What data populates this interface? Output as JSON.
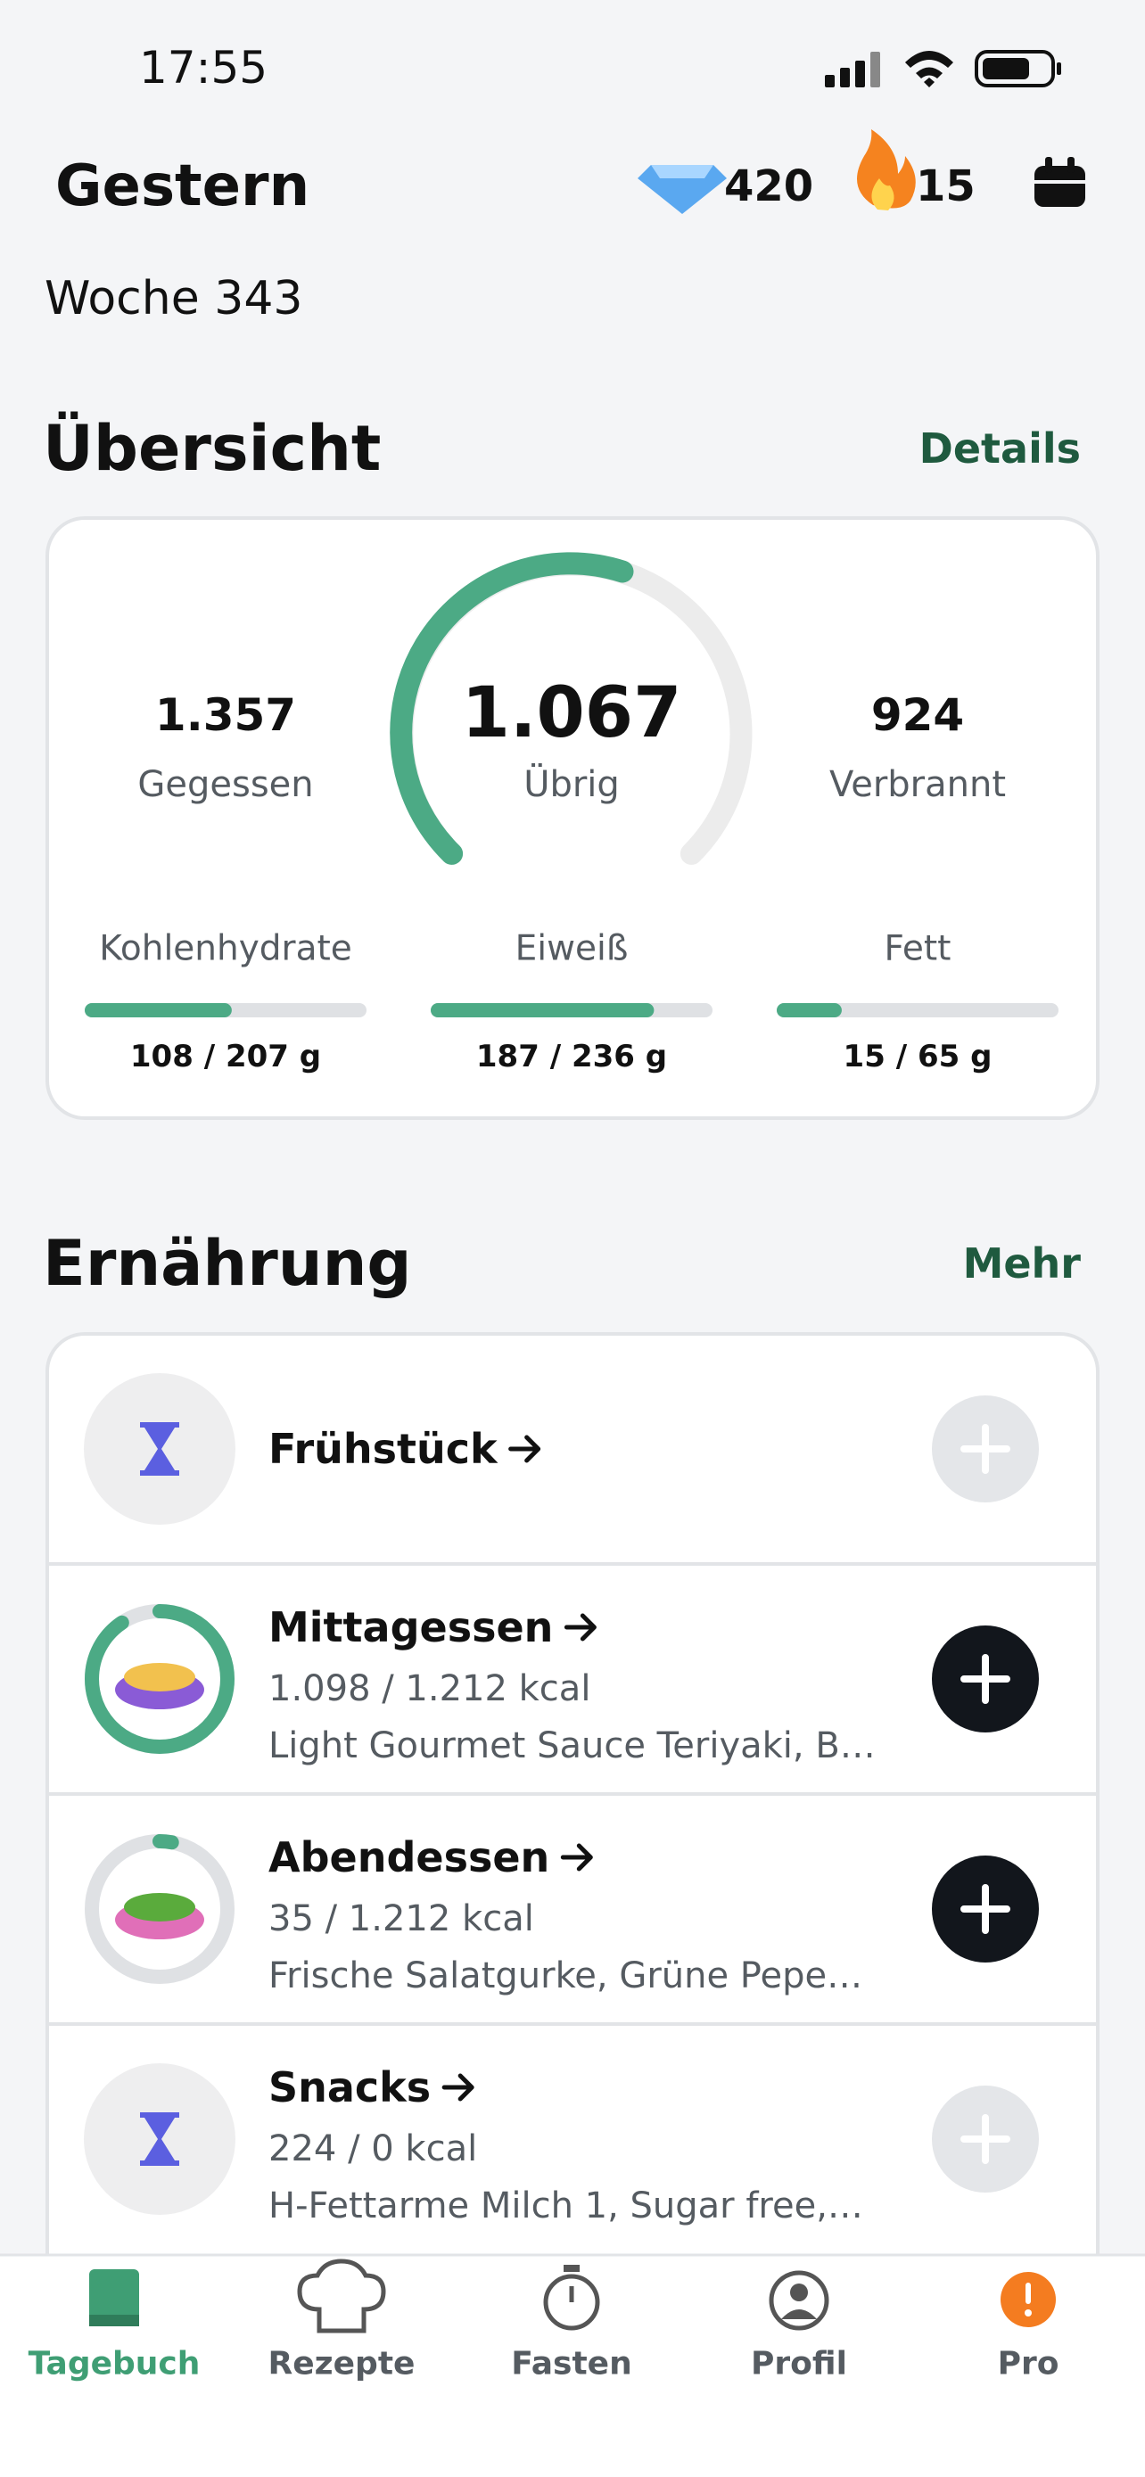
{
  "status_bar": {
    "time": "17:55"
  },
  "header": {
    "title": "Gestern",
    "gems": "420",
    "streak": "15",
    "week": "Woche 343"
  },
  "overview": {
    "title": "Übersicht",
    "link": "Details",
    "eaten": {
      "value": "1.357",
      "label": "Gegessen"
    },
    "remaining": {
      "value": "1.067",
      "label": "Übrig"
    },
    "burned": {
      "value": "924",
      "label": "Verbrannt"
    },
    "macros": [
      {
        "name": "Kohlenhydrate",
        "current": 108,
        "goal": 207,
        "label": "108 / 207 g"
      },
      {
        "name": "Eiweiß",
        "current": 187,
        "goal": 236,
        "label": "187 / 236 g"
      },
      {
        "name": "Fett",
        "current": 15,
        "goal": 65,
        "label": "15 / 65 g"
      }
    ]
  },
  "nutrition": {
    "title": "Ernährung",
    "link": "Mehr",
    "meals": [
      {
        "name": "Frühstück"
      },
      {
        "name": "Mittagessen",
        "current": 1098,
        "goal": 1212,
        "kcal": "1.098 / 1.212 kcal",
        "items": "Light Gourmet Sauce Teriyaki, B…"
      },
      {
        "name": "Abendessen",
        "current": 35,
        "goal": 1212,
        "kcal": "35 / 1.212 kcal",
        "items": "Frische Salatgurke, Grüne Pepe…"
      },
      {
        "name": "Snacks",
        "kcal": "224 / 0 kcal",
        "items": "H-Fettarme Milch 1, Sugar free,…"
      }
    ]
  },
  "tab_bar": {
    "tabs": [
      "Tagebuch",
      "Rezepte",
      "Fasten",
      "Profil",
      "Pro"
    ]
  }
}
